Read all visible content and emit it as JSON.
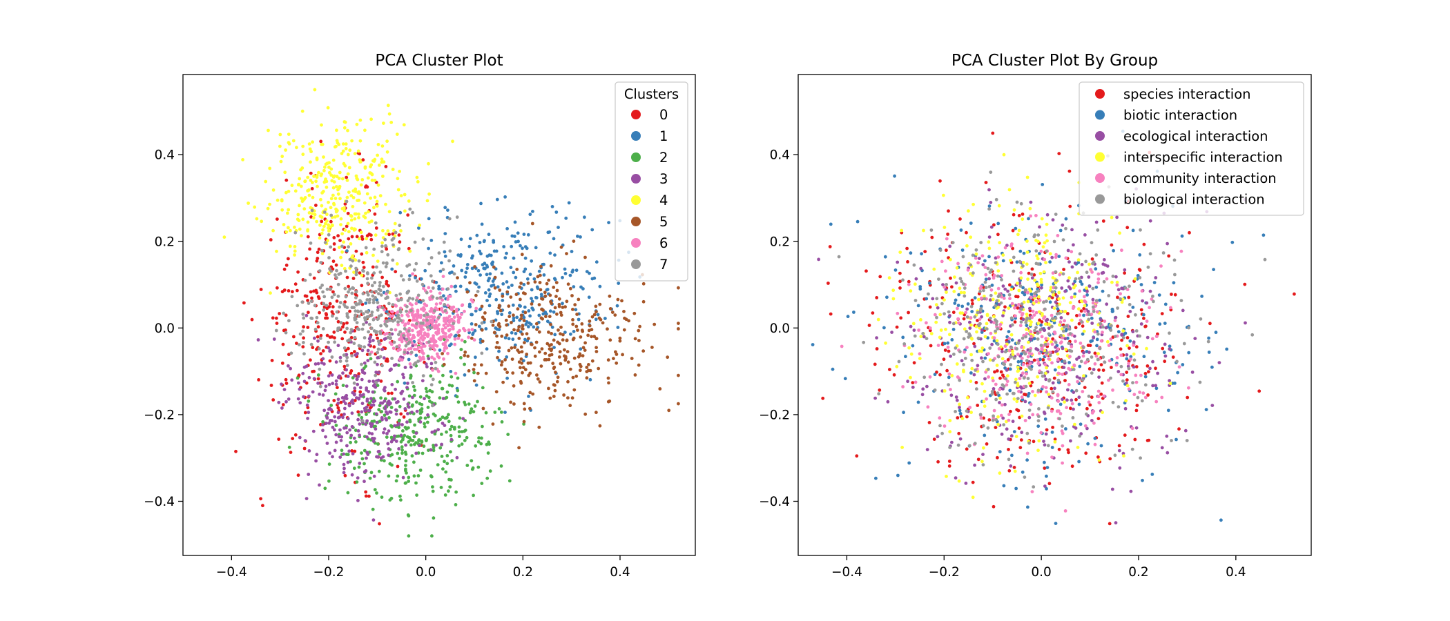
{
  "chart_data": [
    {
      "type": "scatter",
      "title": "PCA Cluster Plot",
      "xlabel": "",
      "ylabel": "",
      "xlim": [
        -0.5,
        0.555
      ],
      "ylim": [
        -0.525,
        0.585
      ],
      "xticks": [
        -0.4,
        -0.2,
        0.0,
        0.2,
        0.4
      ],
      "xtick_labels": [
        "−0.4",
        "−0.2",
        "0.0",
        "0.2",
        "0.4"
      ],
      "yticks": [
        -0.4,
        -0.2,
        0.0,
        0.2,
        0.4
      ],
      "ytick_labels": [
        "−0.4",
        "−0.2",
        "0.0",
        "0.2",
        "0.4"
      ],
      "grid": false,
      "legend_title": "Clusters",
      "legend_position": "top-right",
      "point_count_per_series": 350,
      "series": [
        {
          "name": "0",
          "color": "#e41a1c",
          "center": [
            -0.17,
            0.02
          ],
          "spread": [
            0.085,
            0.15
          ]
        },
        {
          "name": "1",
          "color": "#377eb8",
          "center": [
            0.16,
            0.09
          ],
          "spread": [
            0.11,
            0.095
          ]
        },
        {
          "name": "2",
          "color": "#4daf4a",
          "center": [
            -0.01,
            -0.24
          ],
          "spread": [
            0.085,
            0.08
          ]
        },
        {
          "name": "3",
          "color": "#984ea3",
          "center": [
            -0.13,
            -0.17
          ],
          "spread": [
            0.08,
            0.085
          ]
        },
        {
          "name": "4",
          "color": "#ffff33",
          "center": [
            -0.18,
            0.31
          ],
          "spread": [
            0.075,
            0.085
          ]
        },
        {
          "name": "5",
          "color": "#a65628",
          "center": [
            0.25,
            -0.02
          ],
          "spread": [
            0.1,
            0.08
          ]
        },
        {
          "name": "6",
          "color": "#f781bf",
          "center": [
            0.0,
            0.0
          ],
          "spread": [
            0.04,
            0.04
          ]
        },
        {
          "name": "7",
          "color": "#999999",
          "center": [
            -0.1,
            0.05
          ],
          "spread": [
            0.08,
            0.09
          ]
        }
      ]
    },
    {
      "type": "scatter",
      "title": "PCA Cluster Plot By Group",
      "xlabel": "",
      "ylabel": "",
      "xlim": [
        -0.5,
        0.555
      ],
      "ylim": [
        -0.525,
        0.585
      ],
      "xticks": [
        -0.4,
        -0.2,
        0.0,
        0.2,
        0.4
      ],
      "xtick_labels": [
        "−0.4",
        "−0.2",
        "0.0",
        "0.2",
        "0.4"
      ],
      "yticks": [
        -0.4,
        -0.2,
        0.0,
        0.2,
        0.4
      ],
      "ytick_labels": [
        "−0.4",
        "−0.2",
        "0.0",
        "0.2",
        "0.4"
      ],
      "grid": false,
      "legend_title": "",
      "legend_position": "top-right",
      "point_count_per_series": 320,
      "series": [
        {
          "name": "species interaction",
          "color": "#e41a1c",
          "center": [
            -0.02,
            -0.02
          ],
          "spread": [
            0.17,
            0.17
          ]
        },
        {
          "name": "biotic interaction",
          "color": "#377eb8",
          "center": [
            0.02,
            -0.02
          ],
          "spread": [
            0.16,
            0.15
          ]
        },
        {
          "name": "ecological interaction",
          "color": "#984ea3",
          "center": [
            0.0,
            -0.03
          ],
          "spread": [
            0.15,
            0.15
          ]
        },
        {
          "name": "interspecific interaction",
          "color": "#ffff33",
          "center": [
            -0.05,
            0.01
          ],
          "spread": [
            0.11,
            0.13
          ]
        },
        {
          "name": "community interaction",
          "color": "#f781bf",
          "center": [
            0.0,
            -0.05
          ],
          "spread": [
            0.12,
            0.12
          ]
        },
        {
          "name": "biological interaction",
          "color": "#999999",
          "center": [
            -0.02,
            0.0
          ],
          "spread": [
            0.14,
            0.14
          ]
        }
      ]
    }
  ]
}
